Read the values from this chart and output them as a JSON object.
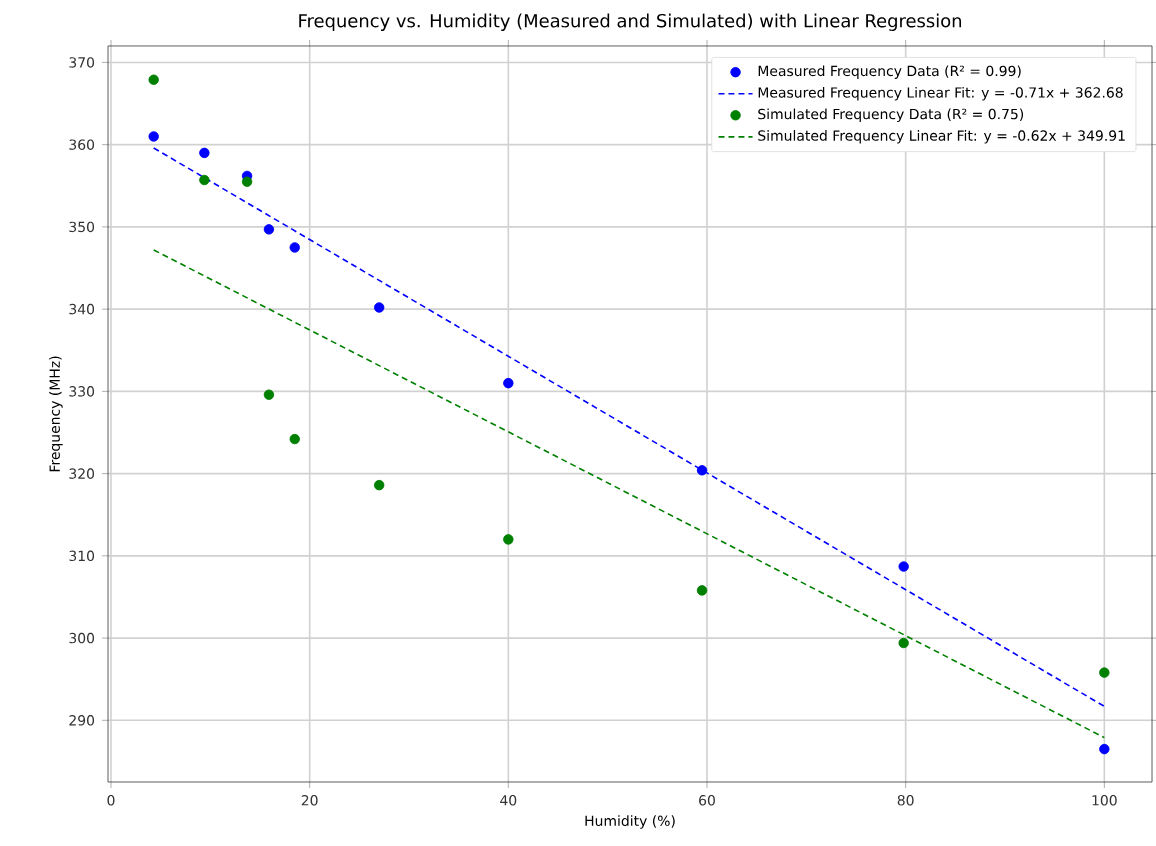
{
  "chart_data": {
    "type": "scatter",
    "title": "Frequency vs. Humidity (Measured and Simulated) with Linear Regression",
    "xlabel": "Humidity (%)",
    "ylabel": "Frequency (MHz)",
    "xlim": [
      -0.3,
      104.8
    ],
    "ylim": [
      282.5,
      372
    ],
    "xticks": [
      0,
      20,
      40,
      60,
      80,
      100
    ],
    "yticks": [
      290,
      300,
      310,
      320,
      330,
      340,
      350,
      360,
      370
    ],
    "grid": true,
    "legend": "top right",
    "series": [
      {
        "name": "Measured Frequency Data (R² = 0.99)",
        "color": "#0000ff",
        "x": [
          4.3,
          9.4,
          13.7,
          15.9,
          18.5,
          27,
          40,
          59.5,
          79.8,
          100
        ],
        "values": [
          361.0,
          359.0,
          356.2,
          349.7,
          347.5,
          340.2,
          331.0,
          320.4,
          308.7,
          286.5
        ]
      },
      {
        "name": "Measured Frequency Linear Fit: y = -0.71x + 362.68",
        "type": "line",
        "line_style": "dashed",
        "marker": "none",
        "color": "#0000ff",
        "x": [
          4.3,
          100
        ],
        "values": [
          359.6,
          291.7
        ]
      },
      {
        "name": "Simulated Frequency Data (R² = 0.75)",
        "color": "#008000",
        "x": [
          4.3,
          9.4,
          13.7,
          15.9,
          18.5,
          27,
          40,
          59.5,
          79.8,
          100
        ],
        "values": [
          367.9,
          355.7,
          355.5,
          329.6,
          324.2,
          318.6,
          312.0,
          305.8,
          299.4,
          295.8
        ]
      },
      {
        "name": "Simulated Frequency Linear Fit: y = -0.62x + 349.91",
        "type": "line",
        "line_style": "dashed",
        "marker": "none",
        "color": "#008000",
        "x": [
          4.3,
          100
        ],
        "values": [
          347.2,
          287.9
        ]
      }
    ]
  }
}
